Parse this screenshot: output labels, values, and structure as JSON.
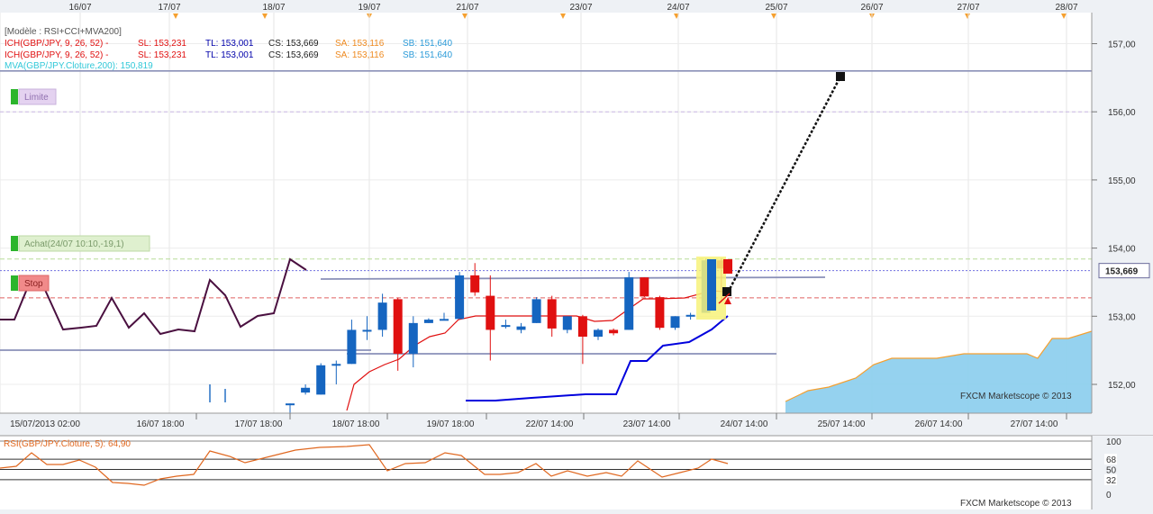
{
  "top_dates": [
    "16/07",
    "17/07",
    "18/07",
    "19/07",
    "21/07",
    "23/07",
    "24/07",
    "25/07",
    "26/07",
    "27/07",
    "28/07"
  ],
  "legend": {
    "model": "[Modèle : RSI+CCI+MVA200]",
    "ich_rows": [
      {
        "name": "ICH(GBP/JPY, 9, 26, 52) -",
        "sl": "SL: 153,231",
        "tl": "TL: 153,001",
        "cs": "CS: 153,669",
        "sa": "SA: 153,116",
        "sb": "SB: 151,640"
      },
      {
        "name": "ICH(GBP/JPY, 9, 26, 52) -",
        "sl": "SL: 153,231",
        "tl": "TL: 153,001",
        "cs": "CS: 153,669",
        "sa": "SA: 153,116",
        "sb": "SB: 151,640"
      }
    ],
    "mva": "MVA(GBP/JPY.Cloture,200): 150,819"
  },
  "price_axis": [
    "157,00",
    "156,00",
    "155,00",
    "154,00",
    "153,00",
    "152,00"
  ],
  "current_price": "153,669",
  "labels": {
    "limite": "Limite",
    "achat": "Achat(24/07 10:10,-19,1)",
    "stop": "Stop"
  },
  "time_axis": [
    "15/07/2013 02:00",
    "16/07 18:00",
    "17/07 18:00",
    "18/07 18:00",
    "19/07 18:00",
    "22/07 14:00",
    "23/07 14:00",
    "24/07 14:00",
    "25/07 14:00",
    "26/07 14:00",
    "27/07 14:00"
  ],
  "watermark": "FXCM Marketscope © 2013",
  "rsi": {
    "label": "RSI(GBP/JPY.Cloture, 5): 64,90",
    "axis": [
      "100",
      "68",
      "50",
      "32",
      "0"
    ]
  },
  "colors": {
    "bull": "#1565c0",
    "bear": "#e01010",
    "kijun": "#0000dd",
    "tenkan": "#e01010",
    "chikou": "#4a1040",
    "cloud": "#8fd0ee",
    "cloud_edge": "#f5a030",
    "rsi": "#e06820",
    "sa": "#ee8a20",
    "sb": "#2a9ad8",
    "mva": "#30c8d8",
    "marker": "#f5a030"
  },
  "chart_data": {
    "type": "candlestick",
    "symbol": "GBP/JPY",
    "ylim": [
      151.6,
      157.4
    ],
    "candles": [
      {
        "o": 151.72,
        "h": 151.72,
        "l": 151.55,
        "c": 151.72
      },
      {
        "o": 151.88,
        "h": 152.0,
        "l": 151.85,
        "c": 151.95
      },
      {
        "o": 151.85,
        "h": 152.31,
        "l": 151.85,
        "c": 152.28
      },
      {
        "o": 152.3,
        "h": 152.35,
        "l": 152.0,
        "c": 152.3
      },
      {
        "o": 152.3,
        "h": 152.95,
        "l": 152.3,
        "c": 152.8
      },
      {
        "o": 152.8,
        "h": 153.0,
        "l": 152.65,
        "c": 152.8
      },
      {
        "o": 152.8,
        "h": 153.33,
        "l": 152.7,
        "c": 153.2
      },
      {
        "o": 153.25,
        "h": 153.27,
        "l": 152.2,
        "c": 152.45
      },
      {
        "o": 152.45,
        "h": 153.0,
        "l": 152.25,
        "c": 152.9
      },
      {
        "o": 152.9,
        "h": 152.97,
        "l": 152.9,
        "c": 152.95
      },
      {
        "o": 152.95,
        "h": 153.05,
        "l": 152.95,
        "c": 152.96
      },
      {
        "o": 152.96,
        "h": 153.65,
        "l": 152.96,
        "c": 153.6
      },
      {
        "o": 153.6,
        "h": 153.78,
        "l": 153.3,
        "c": 153.35
      },
      {
        "o": 153.3,
        "h": 153.6,
        "l": 152.35,
        "c": 152.8
      },
      {
        "o": 152.85,
        "h": 152.95,
        "l": 152.82,
        "c": 152.87
      },
      {
        "o": 152.8,
        "h": 152.9,
        "l": 152.75,
        "c": 152.85
      },
      {
        "o": 152.9,
        "h": 153.28,
        "l": 152.9,
        "c": 153.25
      },
      {
        "o": 153.25,
        "h": 153.3,
        "l": 152.7,
        "c": 152.82
      },
      {
        "o": 152.8,
        "h": 153.0,
        "l": 152.75,
        "c": 153.0
      },
      {
        "o": 153.0,
        "h": 153.02,
        "l": 152.3,
        "c": 152.7
      },
      {
        "o": 152.7,
        "h": 152.82,
        "l": 152.65,
        "c": 152.8
      },
      {
        "o": 152.8,
        "h": 152.82,
        "l": 152.72,
        "c": 152.75
      },
      {
        "o": 152.8,
        "h": 153.65,
        "l": 152.8,
        "c": 153.57
      },
      {
        "o": 153.57,
        "h": 153.57,
        "l": 153.28,
        "c": 153.29
      },
      {
        "o": 153.28,
        "h": 153.3,
        "l": 152.8,
        "c": 152.83
      },
      {
        "o": 152.83,
        "h": 153.0,
        "l": 152.8,
        "c": 153.0
      },
      {
        "o": 153.0,
        "h": 153.05,
        "l": 152.95,
        "c": 153.02
      },
      {
        "o": 153.05,
        "h": 153.85,
        "l": 153.05,
        "c": 153.82
      },
      {
        "o": 153.82,
        "h": 153.85,
        "l": 153.2,
        "c": 153.7
      }
    ],
    "current_price": 153.669,
    "ichimoku_last": {
      "SL": 153.231,
      "TL": 153.001,
      "CS": 153.669,
      "SA": 153.116,
      "SB": 151.64
    },
    "mva200_last": 150.819,
    "limit": 156.6,
    "stop": 153.27,
    "entry": 153.82,
    "projected_target": 156.5,
    "rsi_last": 64.9,
    "rsi_levels": [
      100,
      68,
      50,
      32,
      0
    ]
  }
}
